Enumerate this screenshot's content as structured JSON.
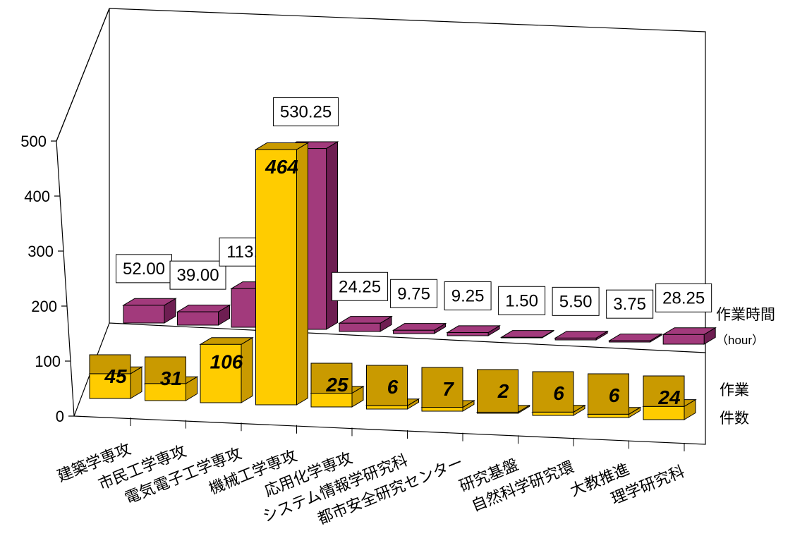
{
  "chart_data": {
    "type": "bar",
    "categories": [
      "建築学専攻",
      "市民工学専攻",
      "電気電子工学専攻",
      "機械工学専攻",
      "応用化学専攻",
      "システム情報学研究科",
      "都市安全研究センター",
      "研究基盤",
      "自然科学研究環",
      "大教推進",
      "理学研究科"
    ],
    "series": [
      {
        "name": "作業時間",
        "unit": "（hour）",
        "values": [
          52.0,
          39.0,
          113.25,
          530.25,
          24.25,
          9.75,
          9.25,
          1.5,
          5.5,
          3.75,
          28.25
        ],
        "labels": [
          "52.00",
          "39.00",
          "113.25",
          "530.25",
          "24.25",
          "9.75",
          "9.25",
          "1.50",
          "5.50",
          "3.75",
          "28.25"
        ]
      },
      {
        "name_line1": "作業",
        "name_line2": "件数",
        "values": [
          45,
          31,
          106,
          464,
          25,
          6,
          7,
          2,
          6,
          6,
          24
        ],
        "labels": [
          "45",
          "31",
          "106",
          "464",
          "25",
          "6",
          "7",
          "2",
          "6",
          "6",
          "24"
        ]
      }
    ],
    "yticks": [
      "0",
      "100",
      "200",
      "300",
      "400",
      "500"
    ],
    "ylim": [
      0,
      500
    ],
    "style": "3d-clustered-depth",
    "colors": {
      "hours": "#A23A7C",
      "count": "#FFCC00",
      "count_dark": "#C99A00",
      "hours_dark": "#6E1E52"
    }
  }
}
